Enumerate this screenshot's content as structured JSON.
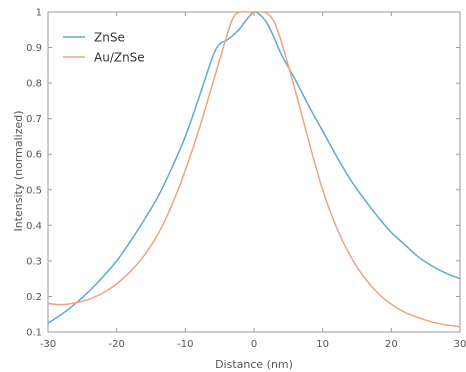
{
  "chart_data": {
    "type": "line",
    "title": "",
    "xlabel": "Distance (nm)",
    "ylabel": "Intensity (normalized)",
    "xlim": [
      -30,
      30
    ],
    "ylim": [
      0.1,
      1.0
    ],
    "xticks": [
      -30,
      -20,
      -10,
      0,
      10,
      20,
      30
    ],
    "xtick_labels": [
      "-30",
      "-20",
      "-10",
      "0",
      "10",
      "20",
      "30"
    ],
    "yticks": [
      0.1,
      0.2,
      0.3,
      0.4,
      0.5,
      0.6,
      0.7,
      0.8,
      0.9,
      1.0
    ],
    "ytick_labels": [
      "0.1",
      "0.2",
      "0.3",
      "0.4",
      "0.5",
      "0.6",
      "0.7",
      "0.8",
      "0.9",
      "1"
    ],
    "grid": false,
    "legend": "top-left",
    "series": [
      {
        "name": "ZnSe",
        "color": "#5ea9d6",
        "x": [
          -30,
          -28,
          -26,
          -24,
          -22,
          -20,
          -18,
          -16,
          -14,
          -12,
          -10,
          -8,
          -6,
          -5,
          -4,
          -3,
          -2,
          -1,
          0,
          1,
          2,
          3,
          4,
          6,
          8,
          10,
          12,
          14,
          16,
          18,
          20,
          22,
          24,
          26,
          28,
          30
        ],
        "y": [
          0.125,
          0.15,
          0.18,
          0.215,
          0.255,
          0.3,
          0.355,
          0.415,
          0.48,
          0.56,
          0.65,
          0.76,
          0.875,
          0.91,
          0.92,
          0.935,
          0.955,
          0.98,
          1.0,
          0.99,
          0.965,
          0.925,
          0.88,
          0.81,
          0.735,
          0.665,
          0.595,
          0.53,
          0.475,
          0.425,
          0.38,
          0.345,
          0.31,
          0.285,
          0.265,
          0.25
        ]
      },
      {
        "name": "Au/ZnSe",
        "color": "#f0a383",
        "x": [
          -30,
          -28,
          -26,
          -24,
          -22,
          -20,
          -18,
          -16,
          -14,
          -12,
          -10,
          -8,
          -6,
          -4,
          -3,
          -2,
          -1,
          0,
          1,
          2,
          3,
          4,
          6,
          8,
          10,
          12,
          14,
          16,
          18,
          20,
          22,
          24,
          26,
          28,
          30
        ],
        "y": [
          0.18,
          0.177,
          0.182,
          0.192,
          0.21,
          0.235,
          0.27,
          0.315,
          0.375,
          0.455,
          0.555,
          0.67,
          0.8,
          0.93,
          0.985,
          1.0,
          1.0,
          1.0,
          1.0,
          0.995,
          0.97,
          0.915,
          0.78,
          0.635,
          0.5,
          0.395,
          0.315,
          0.255,
          0.21,
          0.178,
          0.155,
          0.14,
          0.128,
          0.12,
          0.115
        ]
      }
    ]
  }
}
